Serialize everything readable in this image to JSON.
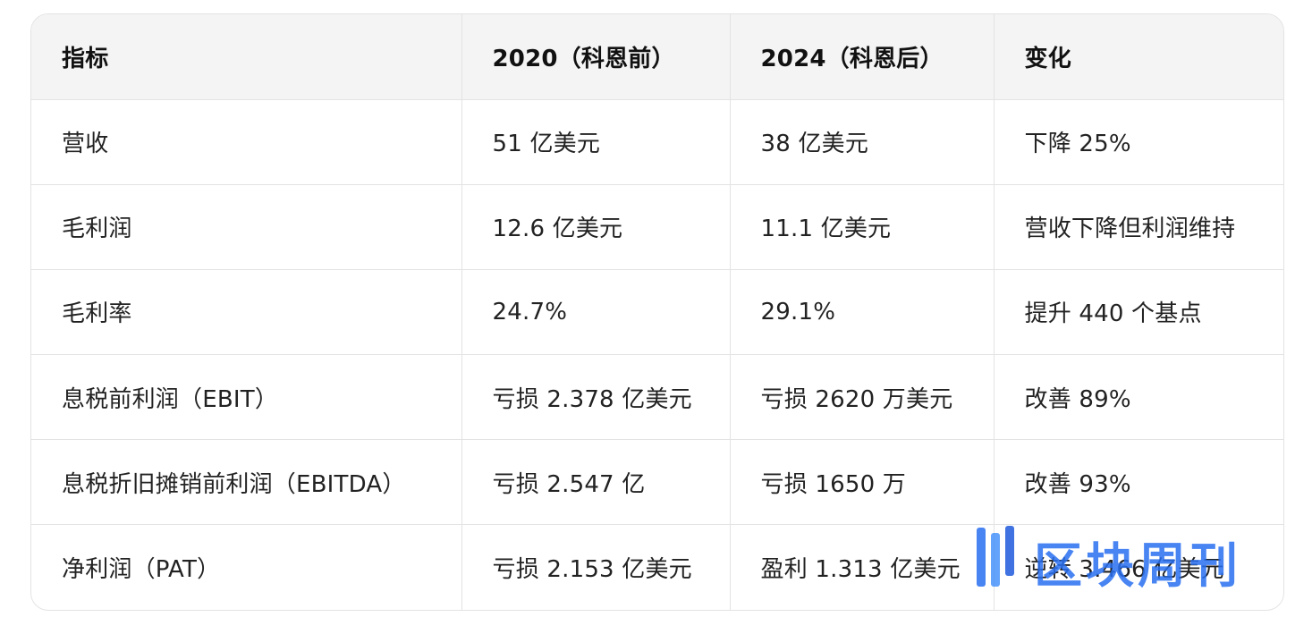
{
  "table": {
    "headers": [
      "指标",
      "2020（科恩前）",
      "2024（科恩后）",
      "变化"
    ],
    "rows": [
      [
        "营收",
        "51 亿美元",
        "38 亿美元",
        "下降 25%"
      ],
      [
        "毛利润",
        "12.6 亿美元",
        "11.1 亿美元",
        "营收下降但利润维持"
      ],
      [
        "毛利率",
        "24.7%",
        "29.1%",
        "提升 440 个基点"
      ],
      [
        "息税前利润（EBIT）",
        "亏损 2.378 亿美元",
        "亏损 2620 万美元",
        "改善 89%"
      ],
      [
        "息税折旧摊销前利润（EBITDA）",
        "亏损 2.547 亿",
        "亏损 1650 万",
        "改善 93%"
      ],
      [
        "净利润（PAT）",
        "亏损 2.153 亿美元",
        "盈利 1.313 亿美元",
        "逆转 3.466 亿美元"
      ]
    ]
  },
  "watermark": {
    "text": "区块周刊",
    "color": "#2a6ef0"
  }
}
